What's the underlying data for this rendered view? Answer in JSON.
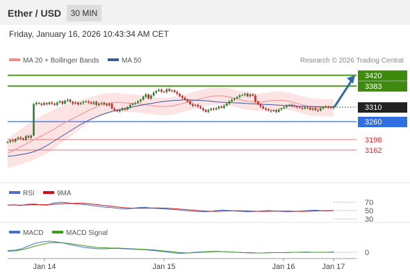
{
  "header": {
    "title": "Ether / USD",
    "timeframe": "30 MIN"
  },
  "date_label": "Friday, January 16, 2026 10:43:34 AM CET",
  "legend": {
    "ma20": "MA 20 + Bollinger Bands",
    "ma50": "MA 50",
    "copyright": "Research © 2026 Trading Central"
  },
  "rsi_legend": {
    "rsi": "RSI",
    "ma": "9MA"
  },
  "macd_legend": {
    "macd": "MACD",
    "signal": "MACD Signal"
  },
  "colors": {
    "up": "#2e7d32",
    "down": "#c62828",
    "resistance": "#4a9a1a",
    "support": "#2f6fe0",
    "lower": "#e57373",
    "ma20": "#f28a8a",
    "ma50": "#3b5a9a",
    "band": "#fde4e4",
    "arrow": "#2f6aa8",
    "current": "#222222"
  },
  "chart_data": [
    {
      "type": "candlestick",
      "title": "Ether / USD",
      "timeframe": "30 MIN",
      "x_ticks": [
        "Jan 14",
        "Jan 15",
        "Jan 16",
        "Jan 17"
      ],
      "ylim": [
        3080,
        3440
      ],
      "current_price": 3310,
      "levels": [
        {
          "value": 3420,
          "label": "3420",
          "kind": "resistance"
        },
        {
          "value": 3383,
          "label": "3383",
          "kind": "resistance"
        },
        {
          "value": 3310,
          "label": "3310",
          "kind": "current"
        },
        {
          "value": 3260,
          "label": "3260",
          "kind": "support"
        },
        {
          "value": 3198,
          "label": "3198",
          "kind": "lower"
        },
        {
          "value": 3162,
          "label": "3162",
          "kind": "lower"
        }
      ],
      "forecast_target": 3420,
      "close_series": [
        3190,
        3195,
        3192,
        3200,
        3205,
        3202,
        3198,
        3210,
        3205,
        3212,
        3320,
        3325,
        3322,
        3318,
        3324,
        3320,
        3326,
        3322,
        3318,
        3326,
        3330,
        3322,
        3332,
        3336,
        3328,
        3322,
        3326,
        3320,
        3324,
        3328,
        3330,
        3326,
        3322,
        3328,
        3318,
        3322,
        3325,
        3320,
        3316,
        3322,
        3305,
        3300,
        3296,
        3300,
        3306,
        3302,
        3310,
        3318,
        3322,
        3325,
        3330,
        3336,
        3346,
        3354,
        3340,
        3350,
        3360,
        3366,
        3370,
        3364,
        3362,
        3372,
        3366,
        3368,
        3362,
        3356,
        3348,
        3342,
        3336,
        3330,
        3320,
        3315,
        3318,
        3312,
        3306,
        3300,
        3294,
        3300,
        3305,
        3302,
        3306,
        3312,
        3308,
        3315,
        3322,
        3330,
        3336,
        3340,
        3345,
        3350,
        3352,
        3356,
        3348,
        3354,
        3350,
        3330,
        3320,
        3312,
        3306,
        3302,
        3298,
        3296,
        3300,
        3294,
        3302,
        3306,
        3310,
        3314,
        3318,
        3315,
        3312,
        3310,
        3308,
        3305,
        3310,
        3308,
        3302,
        3306,
        3300,
        3298,
        3306,
        3310,
        3312,
        3310,
        3308,
        3310
      ],
      "ma20": [
        3150,
        3158,
        3166,
        3174,
        3182,
        3190,
        3198,
        3206,
        3214,
        3222,
        3230,
        3240,
        3250,
        3258,
        3266,
        3274,
        3282,
        3290,
        3298,
        3305,
        3312,
        3318,
        3322,
        3324,
        3326,
        3326,
        3325,
        3324,
        3323,
        3322,
        3320,
        3318,
        3316,
        3314,
        3312,
        3312,
        3313,
        3315,
        3318,
        3322,
        3326,
        3330,
        3334,
        3338,
        3342,
        3346,
        3348,
        3349,
        3349,
        3347,
        3344,
        3340,
        3336,
        3332,
        3330,
        3328,
        3327,
        3328,
        3330,
        3332,
        3334,
        3334,
        3333,
        3330,
        3326,
        3322,
        3318,
        3314,
        3311,
        3310,
        3309,
        3308,
        3308,
        3308
      ],
      "ma50": [
        3140,
        3142,
        3145,
        3148,
        3152,
        3158,
        3166,
        3176,
        3188,
        3200,
        3212,
        3224,
        3236,
        3248,
        3258,
        3268,
        3276,
        3284,
        3290,
        3296,
        3300,
        3304,
        3308,
        3312,
        3316,
        3320,
        3323,
        3326,
        3329,
        3331,
        3333,
        3334,
        3335,
        3335,
        3334,
        3333,
        3332,
        3330,
        3328,
        3327,
        3326,
        3325,
        3324,
        3323,
        3322,
        3321,
        3320,
        3319,
        3318,
        3317,
        3316,
        3315,
        3314,
        3313,
        3313,
        3312,
        3312,
        3311,
        3311,
        3311
      ],
      "rsi": [
        63,
        64,
        62,
        65,
        66,
        64,
        63,
        68,
        70,
        69,
        67,
        65,
        64,
        62,
        60,
        58,
        57,
        55,
        54,
        55,
        57,
        58,
        56,
        55,
        54,
        53,
        52,
        50,
        49,
        48,
        47,
        48,
        50,
        51,
        50,
        49,
        48,
        47,
        48,
        49,
        50,
        49,
        48,
        47,
        48,
        49,
        50,
        51,
        50,
        49,
        50
      ],
      "rsi_ticks": [
        70,
        50,
        30
      ],
      "macd": [
        5,
        6,
        10,
        18,
        26,
        30,
        32,
        30,
        27,
        22,
        18,
        14,
        12,
        10,
        10,
        11,
        11,
        10,
        9,
        8,
        7,
        5,
        3,
        1,
        -2,
        -3,
        -2,
        0,
        1,
        2,
        3,
        2,
        1,
        0,
        -1,
        -2,
        -2,
        -2,
        -1,
        -1,
        -1,
        0,
        0,
        1,
        0,
        0,
        0,
        1
      ],
      "macd_signal": [
        3,
        4,
        7,
        12,
        18,
        23,
        27,
        28,
        27,
        25,
        22,
        19,
        16,
        14,
        13,
        12,
        12,
        11,
        10,
        9,
        8,
        7,
        5,
        3,
        1,
        -1,
        -2,
        -1,
        0,
        1,
        2,
        2,
        1,
        0,
        -1,
        -1,
        -2,
        -2,
        -1,
        -1,
        -1,
        0,
        0,
        0,
        0,
        0,
        0,
        0
      ],
      "macd_ticks": [
        0
      ]
    }
  ]
}
